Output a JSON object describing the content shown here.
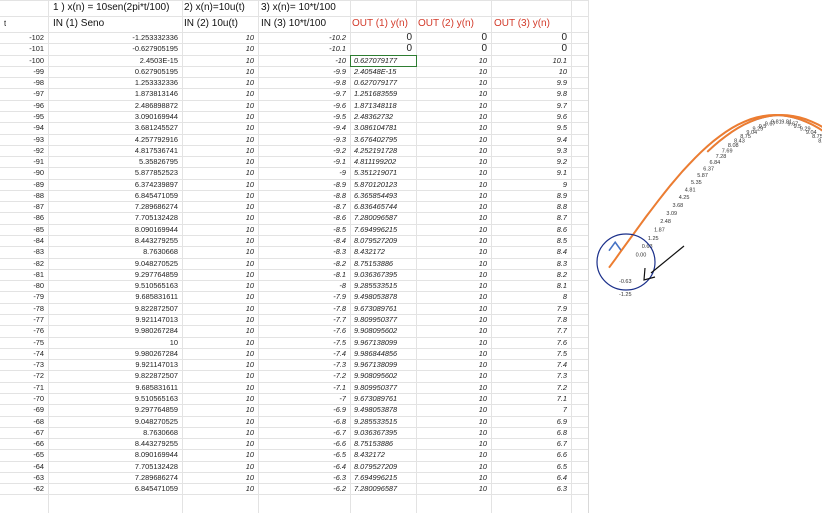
{
  "headers": {
    "row0": [
      {
        "col": "b",
        "text": "1 )  x(n) = 10sen(2pi*t/100)"
      },
      {
        "col": "c",
        "text": "2) x(n)=10u(t)"
      },
      {
        "col": "d",
        "text": "3) x(n)= 10*t/100"
      }
    ],
    "row1": [
      {
        "col": "b",
        "text": "IN (1) Seno",
        "red": false
      },
      {
        "col": "c",
        "text": "IN (2) 10u(t)",
        "red": false
      },
      {
        "col": "d",
        "text": "IN (3) 10*t/100",
        "red": false
      },
      {
        "col": "e",
        "text": "OUT (1) y(n)",
        "red": true
      },
      {
        "col": "f",
        "text": "OUT (2) y(n)",
        "red": true
      },
      {
        "col": "g",
        "text": "OUT (3) y(n)",
        "red": true
      }
    ],
    "t_label": "t"
  },
  "rows": [
    {
      "t": "-102",
      "in1": "-1.253332336",
      "in2": "10",
      "in3": "-10.2",
      "o1": "0",
      "o2": "0",
      "o3": "0"
    },
    {
      "t": "-101",
      "in1": "-0.627905195",
      "in2": "10",
      "in3": "-10.1",
      "o1": "0",
      "o2": "0",
      "o3": "0"
    },
    {
      "t": "-100",
      "in1": "2.4503E-15",
      "in2": "10",
      "in3": "-10",
      "o1": "0.627079177",
      "o2": "10",
      "o3": "10.1"
    },
    {
      "t": "-99",
      "in1": "0.627905195",
      "in2": "10",
      "in3": "-9.9",
      "o1": "2.40548E-15",
      "o2": "10",
      "o3": "10"
    },
    {
      "t": "-98",
      "in1": "1.253332336",
      "in2": "10",
      "in3": "-9.8",
      "o1": "0.627079177",
      "o2": "10",
      "o3": "9.9"
    },
    {
      "t": "-97",
      "in1": "1.873813146",
      "in2": "10",
      "in3": "-9.7",
      "o1": "1.251683559",
      "o2": "10",
      "o3": "9.8"
    },
    {
      "t": "-96",
      "in1": "2.486898872",
      "in2": "10",
      "in3": "-9.6",
      "o1": "1.871348118",
      "o2": "10",
      "o3": "9.7"
    },
    {
      "t": "-95",
      "in1": "3.090169944",
      "in2": "10",
      "in3": "-9.5",
      "o1": "2.48362732",
      "o2": "10",
      "o3": "9.6"
    },
    {
      "t": "-94",
      "in1": "3.681245527",
      "in2": "10",
      "in3": "-9.4",
      "o1": "3.086104781",
      "o2": "10",
      "o3": "9.5"
    },
    {
      "t": "-93",
      "in1": "4.257792916",
      "in2": "10",
      "in3": "-9.3",
      "o1": "3.676402795",
      "o2": "10",
      "o3": "9.4"
    },
    {
      "t": "-92",
      "in1": "4.817536741",
      "in2": "10",
      "in3": "-9.2",
      "o1": "4.252191728",
      "o2": "10",
      "o3": "9.3"
    },
    {
      "t": "-91",
      "in1": "5.35826795",
      "in2": "10",
      "in3": "-9.1",
      "o1": "4.811199202",
      "o2": "10",
      "o3": "9.2"
    },
    {
      "t": "-90",
      "in1": "5.877852523",
      "in2": "10",
      "in3": "-9",
      "o1": "5.351219071",
      "o2": "10",
      "o3": "9.1"
    },
    {
      "t": "-89",
      "in1": "6.374239897",
      "in2": "10",
      "in3": "-8.9",
      "o1": "5.870120123",
      "o2": "10",
      "o3": "9"
    },
    {
      "t": "-88",
      "in1": "6.845471059",
      "in2": "10",
      "in3": "-8.8",
      "o1": "6.365854493",
      "o2": "10",
      "o3": "8.9"
    },
    {
      "t": "-87",
      "in1": "7.289686274",
      "in2": "10",
      "in3": "-8.7",
      "o1": "6.836465744",
      "o2": "10",
      "o3": "8.8"
    },
    {
      "t": "-86",
      "in1": "7.705132428",
      "in2": "10",
      "in3": "-8.6",
      "o1": "7.280096587",
      "o2": "10",
      "o3": "8.7"
    },
    {
      "t": "-85",
      "in1": "8.090169944",
      "in2": "10",
      "in3": "-8.5",
      "o1": "7.694996215",
      "o2": "10",
      "o3": "8.6"
    },
    {
      "t": "-84",
      "in1": "8.443279255",
      "in2": "10",
      "in3": "-8.4",
      "o1": "8.079527209",
      "o2": "10",
      "o3": "8.5"
    },
    {
      "t": "-83",
      "in1": "8.7630668",
      "in2": "10",
      "in3": "-8.3",
      "o1": "8.432172",
      "o2": "10",
      "o3": "8.4"
    },
    {
      "t": "-82",
      "in1": "9.048270525",
      "in2": "10",
      "in3": "-8.2",
      "o1": "8.75153886",
      "o2": "10",
      "o3": "8.3"
    },
    {
      "t": "-81",
      "in1": "9.297764859",
      "in2": "10",
      "in3": "-8.1",
      "o1": "9.036367395",
      "o2": "10",
      "o3": "8.2"
    },
    {
      "t": "-80",
      "in1": "9.510565163",
      "in2": "10",
      "in3": "-8",
      "o1": "9.285533515",
      "o2": "10",
      "o3": "8.1"
    },
    {
      "t": "-79",
      "in1": "9.685831611",
      "in2": "10",
      "in3": "-7.9",
      "o1": "9.498053878",
      "o2": "10",
      "o3": "8"
    },
    {
      "t": "-78",
      "in1": "9.822872507",
      "in2": "10",
      "in3": "-7.8",
      "o1": "9.673089761",
      "o2": "10",
      "o3": "7.9"
    },
    {
      "t": "-77",
      "in1": "9.921147013",
      "in2": "10",
      "in3": "-7.7",
      "o1": "9.809950377",
      "o2": "10",
      "o3": "7.8"
    },
    {
      "t": "-76",
      "in1": "9.980267284",
      "in2": "10",
      "in3": "-7.6",
      "o1": "9.908095602",
      "o2": "10",
      "o3": "7.7"
    },
    {
      "t": "-75",
      "in1": "10",
      "in2": "10",
      "in3": "-7.5",
      "o1": "9.967138099",
      "o2": "10",
      "o3": "7.6"
    },
    {
      "t": "-74",
      "in1": "9.980267284",
      "in2": "10",
      "in3": "-7.4",
      "o1": "9.986844856",
      "o2": "10",
      "o3": "7.5"
    },
    {
      "t": "-73",
      "in1": "9.921147013",
      "in2": "10",
      "in3": "-7.3",
      "o1": "9.967138099",
      "o2": "10",
      "o3": "7.4"
    },
    {
      "t": "-72",
      "in1": "9.822872507",
      "in2": "10",
      "in3": "-7.2",
      "o1": "9.908095602",
      "o2": "10",
      "o3": "7.3"
    },
    {
      "t": "-71",
      "in1": "9.685831611",
      "in2": "10",
      "in3": "-7.1",
      "o1": "9.809950377",
      "o2": "10",
      "o3": "7.2"
    },
    {
      "t": "-70",
      "in1": "9.510565163",
      "in2": "10",
      "in3": "-7",
      "o1": "9.673089761",
      "o2": "10",
      "o3": "7.1"
    },
    {
      "t": "-69",
      "in1": "9.297764859",
      "in2": "10",
      "in3": "-6.9",
      "o1": "9.498053878",
      "o2": "10",
      "o3": "7"
    },
    {
      "t": "-68",
      "in1": "9.048270525",
      "in2": "10",
      "in3": "-6.8",
      "o1": "9.285533515",
      "o2": "10",
      "o3": "6.9"
    },
    {
      "t": "-67",
      "in1": "8.7630668",
      "in2": "10",
      "in3": "-6.7",
      "o1": "9.036367395",
      "o2": "10",
      "o3": "6.8"
    },
    {
      "t": "-66",
      "in1": "8.443279255",
      "in2": "10",
      "in3": "-6.6",
      "o1": "8.75153886",
      "o2": "10",
      "o3": "6.7"
    },
    {
      "t": "-65",
      "in1": "8.090169944",
      "in2": "10",
      "in3": "-6.5",
      "o1": "8.432172",
      "o2": "10",
      "o3": "6.6"
    },
    {
      "t": "-64",
      "in1": "7.705132428",
      "in2": "10",
      "in3": "-6.4",
      "o1": "8.079527209",
      "o2": "10",
      "o3": "6.5"
    },
    {
      "t": "-63",
      "in1": "7.289686274",
      "in2": "10",
      "in3": "-6.3",
      "o1": "7.694996215",
      "o2": "10",
      "o3": "6.4"
    },
    {
      "t": "-62",
      "in1": "6.845471059",
      "in2": "10",
      "in3": "-6.2",
      "o1": "7.280096587",
      "o2": "10",
      "o3": "6.3"
    }
  ],
  "chart_data": {
    "type": "line",
    "series": [
      {
        "values": [
          0,
          0.63,
          2.4e-15,
          0.63,
          1.25,
          1.87,
          2.48,
          3.09,
          3.68,
          4.25,
          4.81,
          5.35,
          5.87,
          6.37,
          6.84,
          7.28,
          7.69,
          8.08,
          8.43,
          8.75,
          9.04,
          9.29,
          9.5,
          9.67,
          9.81,
          9.91,
          9.97,
          9.99,
          9.97,
          9.91,
          9.81,
          9.67,
          9.5,
          9.29,
          9.04,
          8.75,
          8.43,
          8.08,
          7.69,
          7.28
        ]
      },
      {
        "values": [
          -1.25,
          -0.63,
          0,
          0.63,
          1.25,
          1.87,
          2.49,
          3.09,
          3.68,
          4.26,
          4.82,
          5.36,
          5.88,
          6.37,
          6.85,
          7.29,
          7.71,
          8.09,
          8.44,
          8.76,
          9.05,
          9.3,
          9.51,
          9.69,
          9.82,
          9.92,
          9.98,
          10,
          9.98,
          9.92,
          9.82,
          9.69,
          9.51,
          9.3,
          9.05,
          8.76,
          8.44,
          8.09,
          7.71,
          7.29
        ]
      }
    ],
    "point_labels": [
      "9.81",
      "9.67",
      "9.5",
      "9.29",
      "9.04",
      "8.75",
      "8.43",
      "8.08",
      "7.69",
      "7.28",
      "6.84",
      "6.37",
      "5.87",
      "5.35",
      "4.81",
      "4.25",
      "3.68",
      "3.09",
      "2.48",
      "1.87",
      "1.25",
      "0.63",
      "0.00"
    ],
    "annotations": [
      "-0.63",
      "-1.25"
    ],
    "colors": {
      "series1": "#4472c4",
      "series2": "#ed7d31",
      "annotation": "#1a2f8a"
    }
  }
}
